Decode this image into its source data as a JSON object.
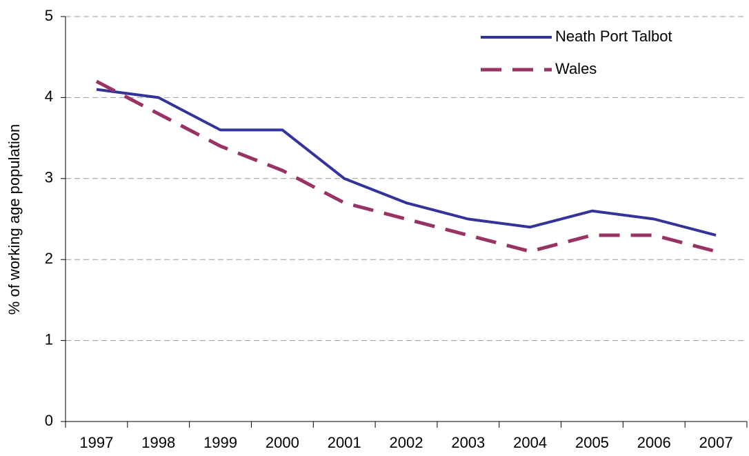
{
  "chart_data": {
    "type": "line",
    "y_label": "% of working age population",
    "categories": [
      "1997",
      "1998",
      "1999",
      "2000",
      "2001",
      "2002",
      "2003",
      "2004",
      "2005",
      "2006",
      "2007"
    ],
    "series": [
      {
        "name": "Neath Port Talbot",
        "color": "#333399",
        "dashed": false,
        "values": [
          4.1,
          4.0,
          3.6,
          3.6,
          3.0,
          2.7,
          2.5,
          2.4,
          2.6,
          2.5,
          2.3
        ]
      },
      {
        "name": "Wales",
        "color": "#993366",
        "dashed": true,
        "values": [
          4.2,
          3.8,
          3.4,
          3.1,
          2.7,
          2.5,
          2.3,
          2.1,
          2.3,
          2.3,
          2.1
        ]
      }
    ],
    "ylim": [
      0,
      5
    ],
    "yticks": [
      0,
      1,
      2,
      3,
      4,
      5
    ],
    "grid": true,
    "legend": "top-right"
  }
}
